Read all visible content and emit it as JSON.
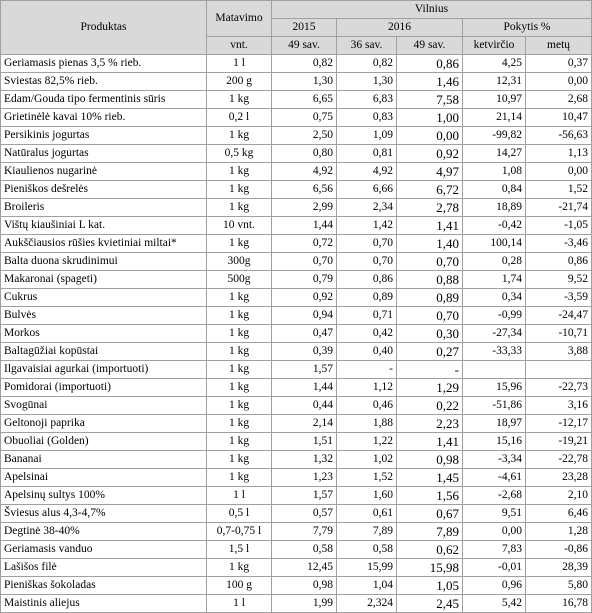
{
  "header": {
    "product": "Produktas",
    "unit": "Matavimo",
    "unit_sub": "vnt.",
    "city": "Vilnius",
    "year_2015": "2015",
    "year_2016": "2016",
    "change": "Pokytis %",
    "w49_2015": "49 sav.",
    "w36_2016": "36 sav.",
    "w49_2016": "49 sav.",
    "quarter": "ketvirčio",
    "year": "metų"
  },
  "rows": [
    {
      "name": "Geriamasis pienas 3,5 % rieb.",
      "unit": "1 l",
      "p2015": "0,82",
      "p36": "0,82",
      "p49": "0,86",
      "q": "4,25",
      "y": "0,37"
    },
    {
      "name": "Sviestas 82,5% rieb.",
      "unit": "200 g",
      "p2015": "1,30",
      "p36": "1,30",
      "p49": "1,46",
      "q": "12,31",
      "y": "0,00"
    },
    {
      "name": "Edam/Gouda tipo fermentinis sūris",
      "unit": "1 kg",
      "p2015": "6,65",
      "p36": "6,83",
      "p49": "7,58",
      "q": "10,97",
      "y": "2,68"
    },
    {
      "name": "Grietinėlė kavai 10% rieb.",
      "unit": "0,2 l",
      "p2015": "0,75",
      "p36": "0,83",
      "p49": "1,00",
      "q": "21,14",
      "y": "10,47"
    },
    {
      "name": "Persikinis jogurtas",
      "unit": "1 kg",
      "p2015": "2,50",
      "p36": "1,09",
      "p49": "0,00",
      "q": "-99,82",
      "y": "-56,63"
    },
    {
      "name": "Natūralus jogurtas",
      "unit": "0,5 kg",
      "p2015": "0,80",
      "p36": "0,81",
      "p49": "0,92",
      "q": "14,27",
      "y": "1,13"
    },
    {
      "name": "Kiaulienos nugarinė",
      "unit": "1 kg",
      "p2015": "4,92",
      "p36": "4,92",
      "p49": "4,97",
      "q": "1,08",
      "y": "0,00"
    },
    {
      "name": "Pieniškos dešrelės",
      "unit": "1 kg",
      "p2015": "6,56",
      "p36": "6,66",
      "p49": "6,72",
      "q": "0,84",
      "y": "1,52"
    },
    {
      "name": "Broileris",
      "unit": "1 kg",
      "p2015": "2,99",
      "p36": "2,34",
      "p49": "2,78",
      "q": "18,89",
      "y": "-21,74"
    },
    {
      "name": "Vištų kiaušiniai L kat.",
      "unit": "10 vnt.",
      "p2015": "1,44",
      "p36": "1,42",
      "p49": "1,41",
      "q": "-0,42",
      "y": "-1,05"
    },
    {
      "name": "Aukščiausios rūšies kvietiniai miltai*",
      "unit": "1 kg",
      "p2015": "0,72",
      "p36": "0,70",
      "p49": "1,40",
      "q": "100,14",
      "y": "-3,46"
    },
    {
      "name": "Balta duona skrudinimui",
      "unit": "300g",
      "p2015": "0,70",
      "p36": "0,70",
      "p49": "0,70",
      "q": "0,28",
      "y": "0,86"
    },
    {
      "name": "Makaronai (spageti)",
      "unit": "500g",
      "p2015": "0,79",
      "p36": "0,86",
      "p49": "0,88",
      "q": "1,74",
      "y": "9,52"
    },
    {
      "name": "Cukrus",
      "unit": "1 kg",
      "p2015": "0,92",
      "p36": "0,89",
      "p49": "0,89",
      "q": "0,34",
      "y": "-3,59"
    },
    {
      "name": "Bulvės",
      "unit": "1 kg",
      "p2015": "0,94",
      "p36": "0,71",
      "p49": "0,70",
      "q": "-0,99",
      "y": "-24,47"
    },
    {
      "name": "Morkos",
      "unit": "1 kg",
      "p2015": "0,47",
      "p36": "0,42",
      "p49": "0,30",
      "q": "-27,34",
      "y": "-10,71"
    },
    {
      "name": "Baltagūžiai kopūstai",
      "unit": "1 kg",
      "p2015": "0,39",
      "p36": "0,40",
      "p49": "0,27",
      "q": "-33,33",
      "y": "3,88"
    },
    {
      "name": "Ilgavaisiai agurkai (importuoti)",
      "unit": "1 kg",
      "p2015": "1,57",
      "p36": "-",
      "p49": "-",
      "q": "",
      "y": ""
    },
    {
      "name": "Pomidorai (importuoti)",
      "unit": "1 kg",
      "p2015": "1,44",
      "p36": "1,12",
      "p49": "1,29",
      "q": "15,96",
      "y": "-22,73"
    },
    {
      "name": "Svogūnai",
      "unit": "1 kg",
      "p2015": "0,44",
      "p36": "0,46",
      "p49": "0,22",
      "q": "-51,86",
      "y": "3,16"
    },
    {
      "name": "Geltonoji paprika",
      "unit": "1 kg",
      "p2015": "2,14",
      "p36": "1,88",
      "p49": "2,23",
      "q": "18,97",
      "y": "-12,17"
    },
    {
      "name": "Obuoliai (Golden)",
      "unit": "1 kg",
      "p2015": "1,51",
      "p36": "1,22",
      "p49": "1,41",
      "q": "15,16",
      "y": "-19,21"
    },
    {
      "name": "Bananai",
      "unit": "1 kg",
      "p2015": "1,32",
      "p36": "1,02",
      "p49": "0,98",
      "q": "-3,34",
      "y": "-22,78"
    },
    {
      "name": "Apelsinai",
      "unit": "1 kg",
      "p2015": "1,23",
      "p36": "1,52",
      "p49": "1,45",
      "q": "-4,61",
      "y": "23,28"
    },
    {
      "name": "Apelsinų sultys 100%",
      "unit": "1 l",
      "p2015": "1,57",
      "p36": "1,60",
      "p49": "1,56",
      "q": "-2,68",
      "y": "2,10"
    },
    {
      "name": "Šviesus alus 4,3-4,7%",
      "unit": "0,5 l",
      "p2015": "0,57",
      "p36": "0,61",
      "p49": "0,67",
      "q": "9,51",
      "y": "6,46"
    },
    {
      "name": "Degtinė 38-40%",
      "unit": "0,7-0,75 l",
      "p2015": "7,79",
      "p36": "7,89",
      "p49": "7,89",
      "q": "0,00",
      "y": "1,28"
    },
    {
      "name": "Geriamasis vanduo",
      "unit": "1,5 l",
      "p2015": "0,58",
      "p36": "0,58",
      "p49": "0,62",
      "q": "7,83",
      "y": "-0,86"
    },
    {
      "name": "Lašišos filė",
      "unit": "1 kg",
      "p2015": "12,45",
      "p36": "15,99",
      "p49": "15,98",
      "q": "-0,01",
      "y": "28,39"
    },
    {
      "name": "Pieniškas šokoladas",
      "unit": "100 g",
      "p2015": "0,98",
      "p36": "1,04",
      "p49": "1,05",
      "q": "0,96",
      "y": "5,80"
    },
    {
      "name": "Maistinis aliejus",
      "unit": "1 l",
      "p2015": "1,99",
      "p36": "2,324",
      "p49": "2,45",
      "q": "5,42",
      "y": "16,78"
    }
  ]
}
